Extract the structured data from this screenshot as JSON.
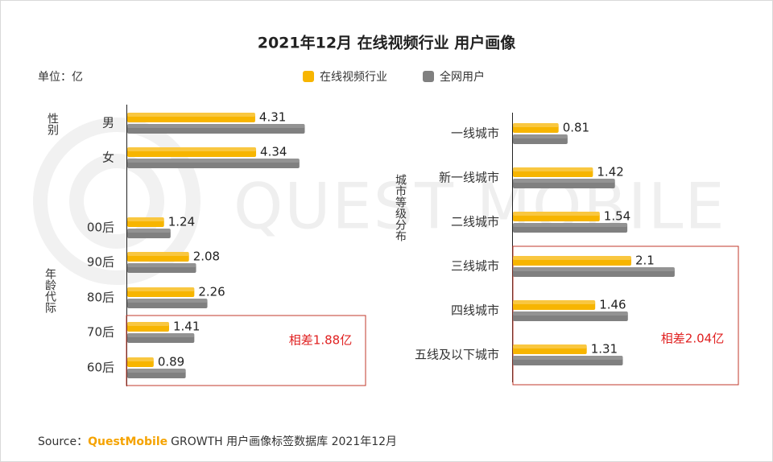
{
  "title": "2021年12月 在线视频行业 用户画像",
  "unit": "单位：亿",
  "watermark": "QUEST MOBILE",
  "source": {
    "label": "Source：",
    "brand": "QuestMobile",
    "text": "GROWTH 用户画像标签数据库 2021年12月"
  },
  "chart_data": [
    {
      "type": "bar",
      "orientation": "horizontal",
      "group_label": "性别",
      "categories": [
        "男",
        "女"
      ],
      "series": [
        {
          "name": "在线视频行业",
          "color": "#f7b500",
          "values": [
            4.31,
            4.34
          ]
        },
        {
          "name": "全网用户",
          "color": "#808080",
          "values": [
            5.98,
            5.8
          ]
        }
      ],
      "xlim": [
        0,
        8
      ]
    },
    {
      "type": "bar",
      "orientation": "horizontal",
      "group_label": "年龄代际",
      "categories": [
        "00后",
        "90后",
        "80后",
        "70后",
        "60后"
      ],
      "series": [
        {
          "name": "在线视频行业",
          "color": "#f7b500",
          "values": [
            1.24,
            2.08,
            2.26,
            1.41,
            0.89
          ]
        },
        {
          "name": "全网用户",
          "color": "#808080",
          "values": [
            1.46,
            2.32,
            2.7,
            2.26,
            1.97
          ]
        }
      ],
      "xlim": [
        0,
        8
      ],
      "annotation": "相差1.88亿"
    },
    {
      "type": "bar",
      "orientation": "horizontal",
      "group_label": "城市等级分布",
      "categories": [
        "一线城市",
        "新一线城市",
        "二线城市",
        "三线城市",
        "四线城市",
        "五线及以下城市"
      ],
      "series": [
        {
          "name": "在线视频行业",
          "color": "#f7b500",
          "values": [
            0.81,
            1.42,
            1.54,
            2.1,
            1.46,
            1.31
          ]
        },
        {
          "name": "全网用户",
          "color": "#808080",
          "values": [
            0.97,
            1.81,
            2.03,
            2.87,
            2.04,
            1.95
          ]
        }
      ],
      "xlim": [
        0,
        4
      ],
      "annotation": "相差2.04亿"
    }
  ]
}
